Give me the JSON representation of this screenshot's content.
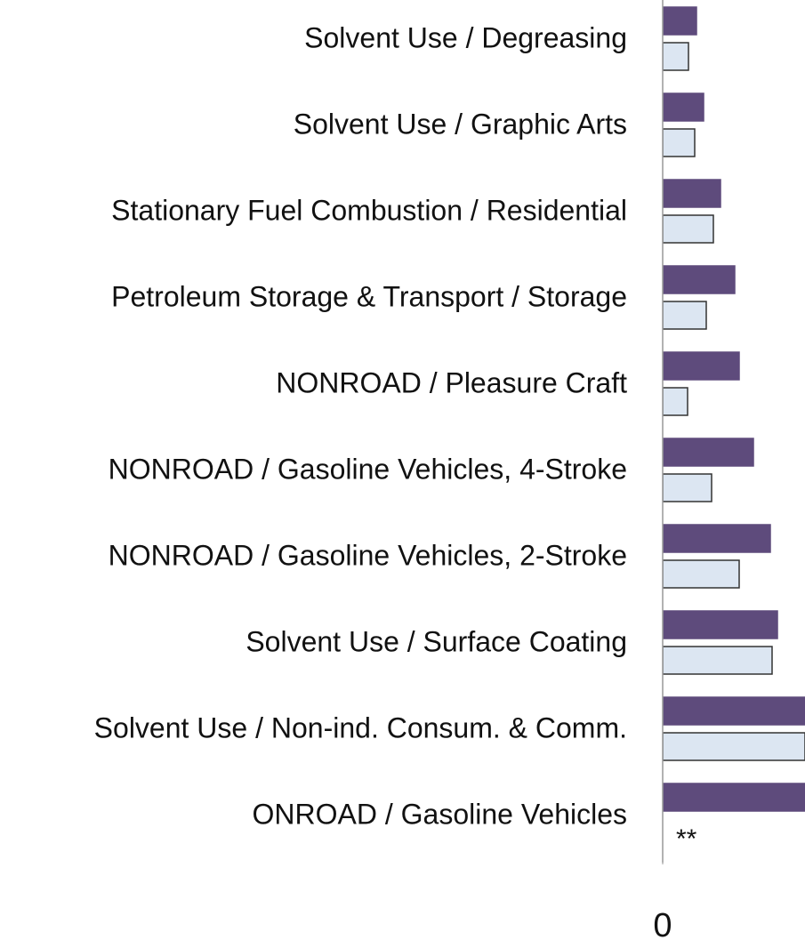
{
  "chart_data": {
    "type": "barh",
    "categories": [
      "Solvent Use / Degreasing",
      "Solvent Use / Graphic Arts",
      "Stationary Fuel Combustion / Residential",
      "Petroleum Storage & Transport / Storage",
      "NONROAD / Pleasure Craft",
      "NONROAD / Gasoline Vehicles, 4-Stroke",
      "NONROAD / Gasoline Vehicles, 2-Stroke",
      "Solvent Use / Surface Coating",
      "Solvent Use / Non-ind. Consum. & Comm.",
      "ONROAD / Gasoline Vehicles"
    ],
    "series": [
      {
        "color": "#5e4b7c",
        "values": [
          38,
          46,
          65,
          81,
          86,
          102,
          121,
          129,
          160,
          160
        ]
      },
      {
        "color": "#dce6f2",
        "values": [
          29,
          36,
          57,
          49,
          28,
          55,
          86,
          123,
          160,
          null
        ]
      }
    ],
    "annotations": [
      "**"
    ],
    "xlim": [
      0,
      160
    ],
    "xticks": [
      0
    ]
  }
}
